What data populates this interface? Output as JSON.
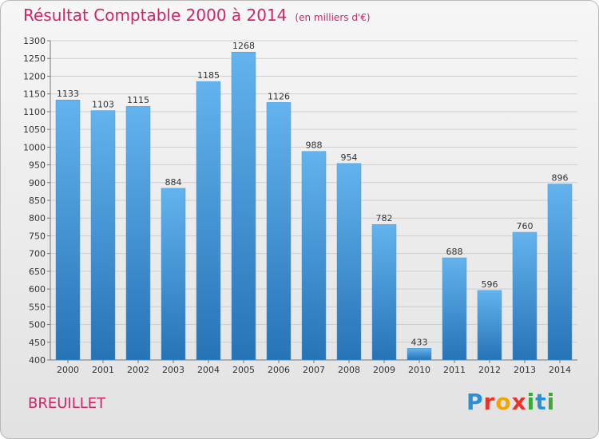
{
  "title": "Résultat Comptable 2000 à 2014",
  "unit": "(en milliers d'€)",
  "commune": "BREUILLET",
  "logo": {
    "letters": [
      "P",
      "r",
      "o",
      "x",
      "i",
      "t",
      "i"
    ],
    "colors": [
      "#2a8fd6",
      "#e7342b",
      "#f2a500",
      "#e7342b",
      "#3aaa35",
      "#2a8fd6",
      "#3aaa35"
    ]
  },
  "colors": {
    "title": "#d0246b",
    "bar_light": "#63b3ee",
    "bar_dark": "#2673b6",
    "grid": "#cfcfcf"
  },
  "chart_data": {
    "type": "bar",
    "title": "Résultat Comptable 2000 à 2014",
    "xlabel": "",
    "ylabel": "",
    "ylim": [
      400,
      1300
    ],
    "yticks": [
      400,
      450,
      500,
      550,
      600,
      650,
      700,
      750,
      800,
      850,
      900,
      950,
      1000,
      1050,
      1100,
      1150,
      1200,
      1250,
      1300
    ],
    "grid": true,
    "categories": [
      "2000",
      "2001",
      "2002",
      "2003",
      "2004",
      "2005",
      "2006",
      "2007",
      "2008",
      "2009",
      "2010",
      "2011",
      "2012",
      "2013",
      "2014"
    ],
    "values": [
      1133,
      1103,
      1115,
      884,
      1185,
      1268,
      1126,
      988,
      954,
      782,
      433,
      688,
      596,
      760,
      896
    ]
  }
}
